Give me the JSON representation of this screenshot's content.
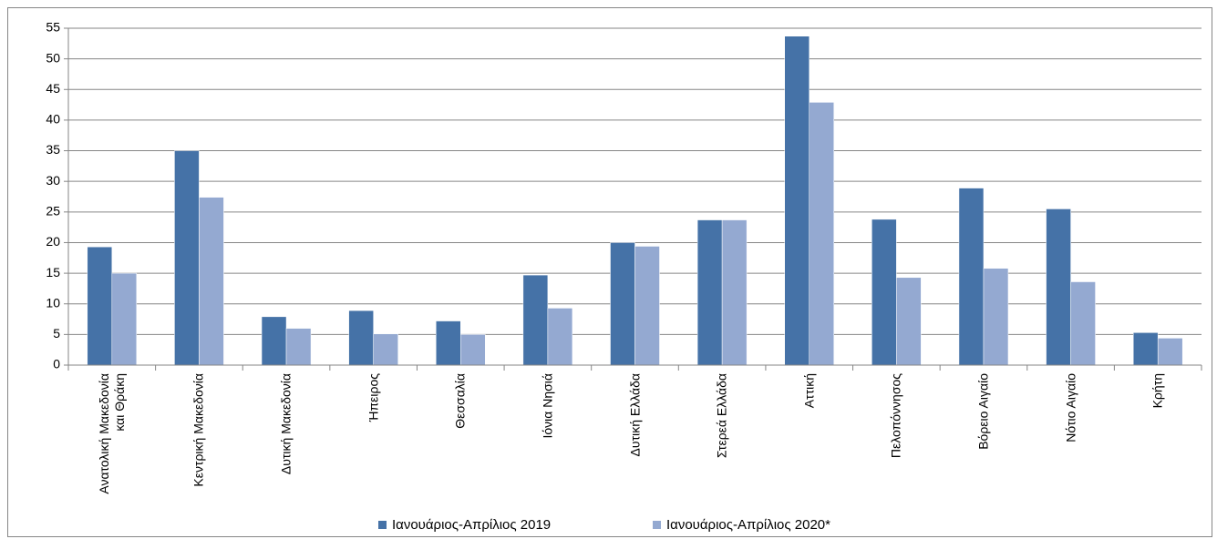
{
  "chart_data": {
    "type": "bar",
    "categories": [
      "Ανατολική Μακεδονία και Θράκη",
      "Κεντρική Μακεδονία",
      "Δυτική Μακεδονία",
      "Ήπειρος",
      "Θεσσαλία",
      "Ιόνια Νησιά",
      "Δυτική Ελλάδα",
      "Στερεά Ελλάδα",
      "Αττική",
      "Πελοπόννησος",
      "Βόρειο Αιγαίο",
      "Νότιο Αιγαίο",
      "Κρήτη"
    ],
    "series": [
      {
        "name": "Ιανουάριος-Απρίλιος 2019",
        "color": "#4572a7",
        "values": [
          19.3,
          35.0,
          7.9,
          8.9,
          7.2,
          14.7,
          20.0,
          23.7,
          53.7,
          23.8,
          28.9,
          25.5,
          5.3
        ]
      },
      {
        "name": "Ιανουάριος-Απρίλιος 2020*",
        "color": "#94a9d1",
        "values": [
          15.0,
          27.4,
          6.0,
          5.1,
          5.0,
          9.3,
          19.4,
          23.7,
          42.9,
          14.3,
          15.8,
          13.6,
          4.4
        ]
      }
    ],
    "ylim": [
      0,
      55
    ],
    "yticks": [
      0,
      5,
      10,
      15,
      20,
      25,
      30,
      35,
      40,
      45,
      50,
      55
    ],
    "grid": true
  }
}
